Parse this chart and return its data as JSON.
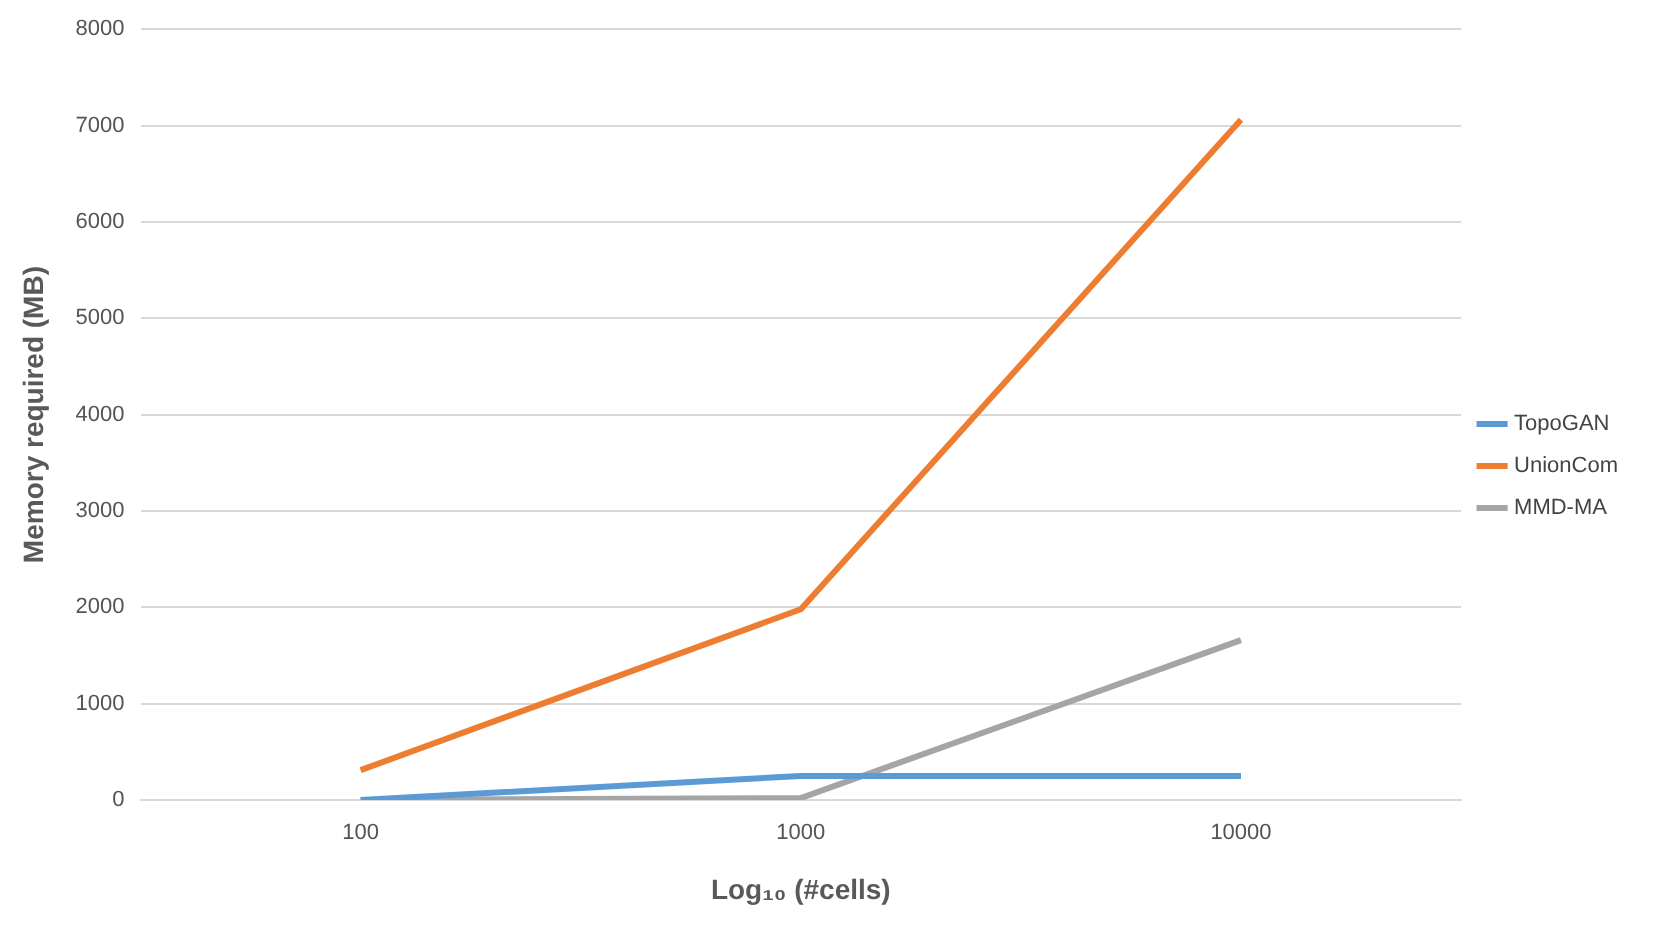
{
  "chart_data": {
    "type": "line",
    "xlabel": "Log₁₀ (#cells)",
    "ylabel": "Memory required (MB)",
    "categories": [
      "100",
      "1000",
      "10000"
    ],
    "series": [
      {
        "name": "TopoGAN",
        "color": "#5b9bd5",
        "values": [
          0,
          250,
          250
        ]
      },
      {
        "name": "UnionCom",
        "color": "#ed7d31",
        "values": [
          310,
          1980,
          7060
        ]
      },
      {
        "name": "MMD-MA",
        "color": "#a5a5a5",
        "values": [
          0,
          20,
          1660
        ]
      }
    ],
    "ylim": [
      0,
      8000
    ],
    "yticks": [
      0,
      1000,
      2000,
      3000,
      4000,
      5000,
      6000,
      7000,
      8000
    ],
    "grid": "y",
    "legend": "right",
    "marker": "none",
    "line_style": "solid"
  }
}
